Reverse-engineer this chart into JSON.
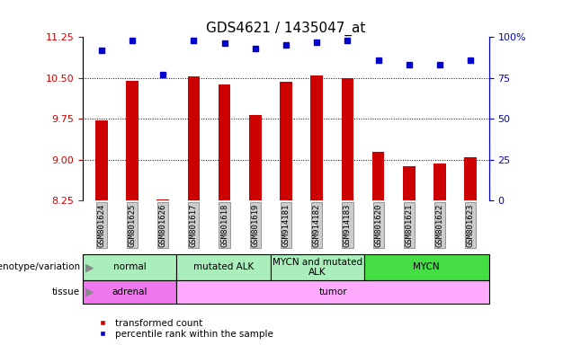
{
  "title": "GDS4621 / 1435047_at",
  "samples": [
    "GSM801624",
    "GSM801625",
    "GSM801626",
    "GSM801617",
    "GSM801618",
    "GSM801619",
    "GSM914181",
    "GSM914182",
    "GSM914183",
    "GSM801620",
    "GSM801621",
    "GSM801622",
    "GSM801623"
  ],
  "bar_values": [
    9.72,
    10.45,
    8.28,
    10.52,
    10.38,
    9.82,
    10.43,
    10.55,
    10.5,
    9.15,
    8.88,
    8.93,
    9.05
  ],
  "dot_values": [
    92,
    98,
    77,
    98,
    96,
    93,
    95,
    97,
    98,
    86,
    83,
    83,
    86
  ],
  "ylim_left": [
    8.25,
    11.25
  ],
  "ylim_right": [
    0,
    100
  ],
  "yticks_left": [
    8.25,
    9.0,
    9.75,
    10.5,
    11.25
  ],
  "yticks_right": [
    0,
    25,
    50,
    75,
    100
  ],
  "hlines": [
    9.0,
    9.75,
    10.5
  ],
  "bar_color": "#cc0000",
  "dot_color": "#0000cc",
  "bar_bottom": 8.25,
  "genotype_groups": [
    {
      "label": "normal",
      "start": 0,
      "end": 3,
      "color": "#aaeebb"
    },
    {
      "label": "mutated ALK",
      "start": 3,
      "end": 6,
      "color": "#aaeebb"
    },
    {
      "label": "MYCN and mutated\nALK",
      "start": 6,
      "end": 9,
      "color": "#aaeebb"
    },
    {
      "label": "MYCN",
      "start": 9,
      "end": 13,
      "color": "#44dd44"
    }
  ],
  "tissue_groups": [
    {
      "label": "adrenal",
      "start": 0,
      "end": 3,
      "color": "#ee77ee"
    },
    {
      "label": "tumor",
      "start": 3,
      "end": 13,
      "color": "#ffaaff"
    }
  ],
  "xlabel_color": "#cc0000",
  "right_axis_color": "#0000cc",
  "title_fontsize": 11,
  "tick_fontsize": 8,
  "bar_width": 0.4
}
